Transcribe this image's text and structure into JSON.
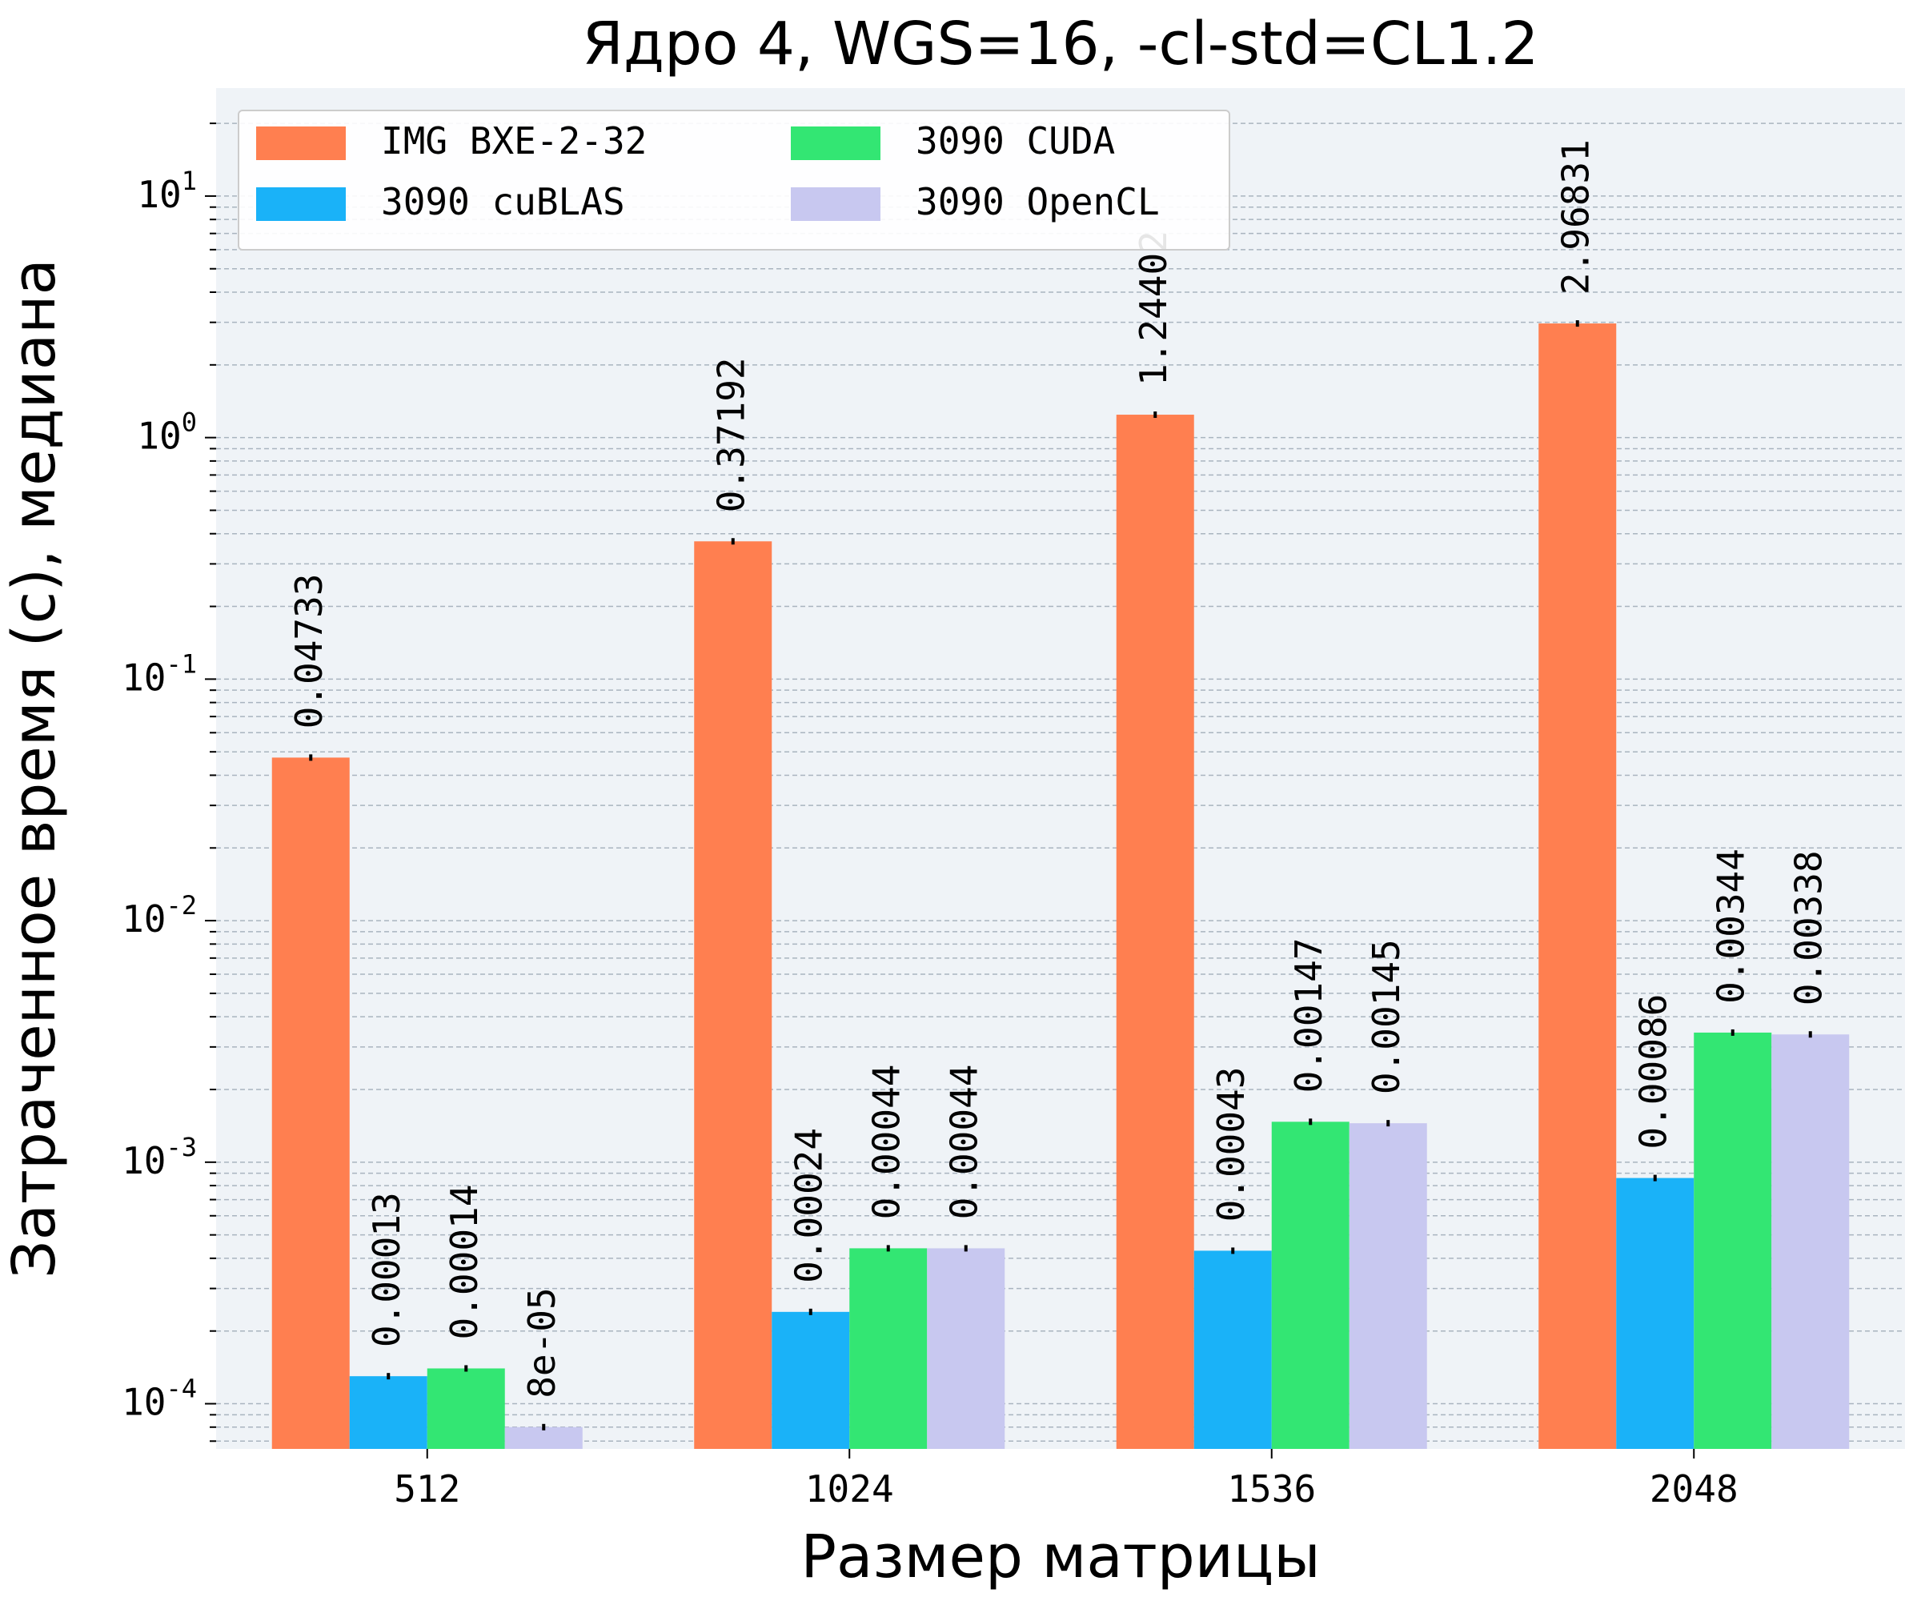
{
  "chart_data": {
    "type": "bar",
    "title": "Ядро 4, WGS=16, -cl-std=CL1.2",
    "xlabel": "Размер матрицы",
    "ylabel": "Затраченное время (с), медиана",
    "yscale": "log",
    "ylim": [
      6.5e-05,
      28
    ],
    "yticks": [
      {
        "value": 0.0001,
        "base": "10",
        "exp": "-4"
      },
      {
        "value": 0.001,
        "base": "10",
        "exp": "-3"
      },
      {
        "value": 0.01,
        "base": "10",
        "exp": "-2"
      },
      {
        "value": 0.1,
        "base": "10",
        "exp": "-1"
      },
      {
        "value": 1,
        "base": "10",
        "exp": "0"
      },
      {
        "value": 10,
        "base": "10",
        "exp": "1"
      }
    ],
    "grid": true,
    "legend_position": "top-left",
    "categories": [
      "512",
      "1024",
      "1536",
      "2048"
    ],
    "series": [
      {
        "name": "IMG BXE-2-32",
        "color": "#ff7f50",
        "values": [
          0.04733,
          0.37192,
          1.24402,
          2.96831
        ],
        "labels": [
          "0.04733",
          "0.37192",
          "1.24402",
          "2.96831"
        ]
      },
      {
        "name": "3090 cuBLAS",
        "color": "#1ab2f8",
        "values": [
          0.00013,
          0.00024,
          0.00043,
          0.00086
        ],
        "labels": [
          "0.00013",
          "0.00024",
          "0.00043",
          "0.00086"
        ]
      },
      {
        "name": "3090 CUDA",
        "color": "#33e673",
        "values": [
          0.00014,
          0.00044,
          0.00147,
          0.00344
        ],
        "labels": [
          "0.00014",
          "0.00044",
          "0.00147",
          "0.00344"
        ]
      },
      {
        "name": "3090 OpenCL",
        "color": "#c8c8f0",
        "values": [
          8e-05,
          0.00044,
          0.00145,
          0.00338
        ],
        "labels": [
          "8e-05",
          "0.00044",
          "0.00145",
          "0.00338"
        ]
      }
    ],
    "colors": {
      "plot_background": "#eff3f7",
      "grid": "#a9b4bf"
    }
  }
}
